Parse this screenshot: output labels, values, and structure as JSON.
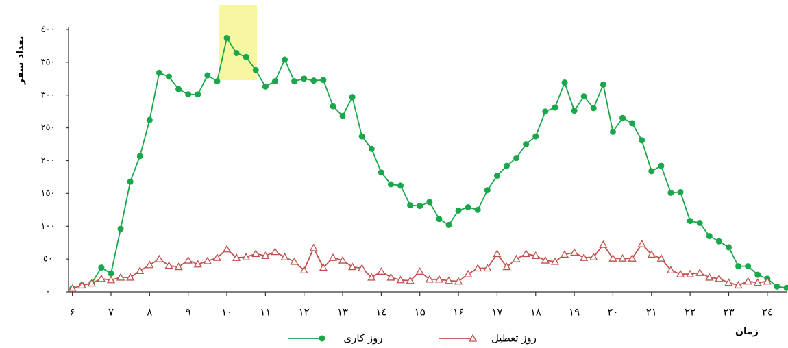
{
  "chart_data": {
    "type": "line",
    "y_label": "تعداد سفر",
    "x_label": "زمان",
    "x": [
      6,
      6.25,
      6.5,
      6.75,
      7,
      7.25,
      7.5,
      7.75,
      8,
      8.25,
      8.5,
      8.75,
      9,
      9.25,
      9.5,
      9.75,
      10,
      10.25,
      10.5,
      10.75,
      11,
      11.25,
      11.5,
      11.75,
      12,
      12.25,
      12.5,
      12.75,
      13,
      13.25,
      13.5,
      13.75,
      14,
      14.25,
      14.5,
      14.75,
      15,
      15.25,
      15.5,
      15.75,
      16,
      16.25,
      16.5,
      16.75,
      17,
      17.25,
      17.5,
      17.75,
      18,
      18.25,
      18.5,
      18.75,
      19,
      19.25,
      19.5,
      19.75,
      20,
      20.25,
      20.5,
      20.75,
      21,
      21.25,
      21.5,
      21.75,
      22,
      22.25,
      22.5,
      22.75,
      23,
      23.25,
      23.5,
      23.75,
      24,
      24.25,
      24.5
    ],
    "series": [
      {
        "name": "روز کاری",
        "color": "#1aa64a",
        "marker": "circle",
        "values": [
          5,
          10,
          13,
          37,
          28,
          96,
          168,
          207,
          262,
          334,
          328,
          309,
          301,
          301,
          330,
          321,
          387,
          364,
          358,
          338,
          313,
          321,
          354,
          321,
          325,
          322,
          323,
          283,
          268,
          297,
          237,
          218,
          182,
          164,
          162,
          132,
          131,
          137,
          111,
          102,
          124,
          129,
          125,
          155,
          177,
          192,
          204,
          225,
          237,
          275,
          281,
          319,
          276,
          298,
          280,
          316,
          244,
          265,
          257,
          231,
          184,
          192,
          151,
          152,
          108,
          105,
          85,
          77,
          68,
          39,
          39,
          26,
          20,
          8,
          6
        ]
      },
      {
        "name": "روز تعطیل",
        "color": "#c0504d",
        "marker": "triangle",
        "values": [
          5,
          10,
          13,
          20,
          18,
          22,
          22,
          32,
          41,
          50,
          40,
          38,
          48,
          42,
          47,
          52,
          65,
          52,
          53,
          58,
          55,
          61,
          53,
          46,
          33,
          67,
          37,
          52,
          48,
          38,
          36,
          22,
          31,
          22,
          18,
          17,
          31,
          19,
          19,
          17,
          16,
          27,
          36,
          36,
          58,
          38,
          50,
          58,
          55,
          48,
          46,
          57,
          60,
          52,
          53,
          72,
          51,
          51,
          51,
          73,
          57,
          51,
          33,
          27,
          27,
          29,
          22,
          20,
          14,
          10,
          16,
          14,
          16,
          null,
          null
        ]
      }
    ],
    "xlim": [
      5.9,
      24.5
    ],
    "xticks": [
      {
        "value": 6,
        "label": "۶"
      },
      {
        "value": 7,
        "label": "۷"
      },
      {
        "value": 8,
        "label": "۸"
      },
      {
        "value": 9,
        "label": "۹"
      },
      {
        "value": 10,
        "label": "۱۰"
      },
      {
        "value": 11,
        "label": "۱۱"
      },
      {
        "value": 12,
        "label": "۱۲"
      },
      {
        "value": 13,
        "label": "۱۳"
      },
      {
        "value": 14,
        "label": "١٤"
      },
      {
        "value": 15,
        "label": "۱۵"
      },
      {
        "value": 16,
        "label": "۱۶"
      },
      {
        "value": 17,
        "label": "۱۷"
      },
      {
        "value": 18,
        "label": "۱۸"
      },
      {
        "value": 19,
        "label": "۱۹"
      },
      {
        "value": 20,
        "label": "۲۰"
      },
      {
        "value": 21,
        "label": "۲۱"
      },
      {
        "value": 22,
        "label": "۲۲"
      },
      {
        "value": 23,
        "label": "۲۳"
      },
      {
        "value": 24,
        "label": "٢٤"
      }
    ],
    "ylim": [
      0,
      400
    ],
    "yticks": [
      {
        "value": 0,
        "label": "٠"
      },
      {
        "value": 50,
        "label": "٥٠"
      },
      {
        "value": 100,
        "label": "١٠٠"
      },
      {
        "value": 150,
        "label": "١٥٠"
      },
      {
        "value": 200,
        "label": "٢٠٠"
      },
      {
        "value": 250,
        "label": "٢٥٠"
      },
      {
        "value": 300,
        "label": "٣٠٠"
      },
      {
        "value": 350,
        "label": "٣٥٠"
      },
      {
        "value": 400,
        "label": "٤٠٠"
      }
    ],
    "grid": false
  }
}
